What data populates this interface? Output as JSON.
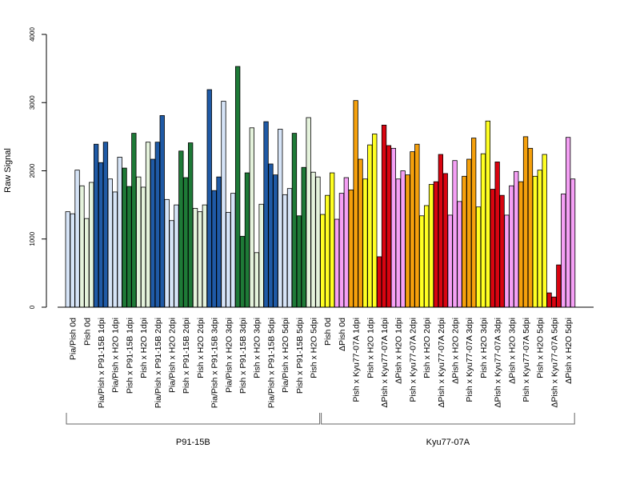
{
  "chart_data": {
    "type": "bar",
    "ylabel": "Raw Signal",
    "ylim": [
      0,
      4000
    ],
    "yticks": [
      0,
      1000,
      2000,
      3000,
      4000
    ],
    "bars_per_group": 3,
    "groups": [
      {
        "label": "Pia/Pish 0d",
        "color": "#D6E4F7",
        "values": [
          1400,
          1370,
          2010
        ]
      },
      {
        "label": "Pish 0d",
        "color": "#E5F3DC",
        "values": [
          1780,
          1300,
          1830
        ]
      },
      {
        "label": "Pia/Pish x P91-15B 1dpi",
        "color": "#1F5AA6",
        "values": [
          2390,
          2120,
          2420
        ]
      },
      {
        "label": "Pia/Pish x H2O 1dpi",
        "color": "#D6E4F7",
        "values": [
          1880,
          1690,
          2200
        ]
      },
      {
        "label": "Pish x P91-15B 1dpi",
        "color": "#1E7A37",
        "values": [
          2040,
          1770,
          2550
        ]
      },
      {
        "label": "Pish x H2O 1dpi",
        "color": "#E5F3DC",
        "values": [
          1910,
          1760,
          2420
        ]
      },
      {
        "label": "Pia/Pish x P91-15B 2dpi",
        "color": "#1F5AA6",
        "values": [
          2170,
          2420,
          2810
        ]
      },
      {
        "label": "Pia/Pish x H2O 2dpi",
        "color": "#D6E4F7",
        "values": [
          1580,
          1270,
          1500
        ]
      },
      {
        "label": "Pish x P91-15B 2dpi",
        "color": "#1E7A37",
        "values": [
          2290,
          1900,
          2410
        ]
      },
      {
        "label": "Pish x H2O 2dpi",
        "color": "#E5F3DC",
        "values": [
          1450,
          1400,
          1500
        ]
      },
      {
        "label": "Pia/Pish x P91-15B 3dpi",
        "color": "#1F5AA6",
        "values": [
          3190,
          1710,
          1910
        ]
      },
      {
        "label": "Pia/Pish x H2O 3dpi",
        "color": "#D6E4F7",
        "values": [
          3020,
          1390,
          1670
        ]
      },
      {
        "label": "Pish x P91-15B 3dpi",
        "color": "#1E7A37",
        "values": [
          3530,
          1040,
          1970
        ]
      },
      {
        "label": "Pish x H2O 3dpi",
        "color": "#E5F3DC",
        "values": [
          2630,
          800,
          1510
        ]
      },
      {
        "label": "Pia/Pish x P91-15B 5dpi",
        "color": "#1F5AA6",
        "values": [
          2720,
          2100,
          1940
        ]
      },
      {
        "label": "Pia/Pish x H2O 5dpi",
        "color": "#D6E4F7",
        "values": [
          2610,
          1650,
          1740
        ]
      },
      {
        "label": "Pish x P91-15B 5dpi",
        "color": "#1E7A37",
        "values": [
          2550,
          1340,
          2050
        ]
      },
      {
        "label": "Pish x H2O 5dpi",
        "color": "#E5F3DC",
        "values": [
          2780,
          1980,
          1910
        ]
      },
      {
        "label": "Pish 0d",
        "color": "#FFFF22",
        "values": [
          1360,
          1640,
          1970
        ]
      },
      {
        "label": "ΔPish 0d",
        "color": "#F5A0F5",
        "values": [
          1290,
          1670,
          1900
        ]
      },
      {
        "label": "Pish x Kyu77-07A 1dpi",
        "color": "#F5A00C",
        "values": [
          1720,
          3030,
          2170
        ]
      },
      {
        "label": "Pish x H2O 1dpi",
        "color": "#FFFF22",
        "values": [
          1880,
          2380,
          2540
        ]
      },
      {
        "label": "ΔPish x Kyu77-07A 1dpi",
        "color": "#D90410",
        "values": [
          740,
          2670,
          2370
        ]
      },
      {
        "label": "ΔPish x H2O 1dpi",
        "color": "#F5A0F5",
        "values": [
          2330,
          1880,
          2000
        ]
      },
      {
        "label": "Pish x Kyu77-07A 2dpi",
        "color": "#F5A00C",
        "values": [
          1940,
          2280,
          2390
        ]
      },
      {
        "label": "Pish x H2O 2dpi",
        "color": "#FFFF22",
        "values": [
          1340,
          1490,
          1800
        ]
      },
      {
        "label": "ΔPish x Kyu77-07A 2dpi",
        "color": "#D90410",
        "values": [
          1840,
          2240,
          1960
        ]
      },
      {
        "label": "ΔPish x H2O 2dpi",
        "color": "#F5A0F5",
        "values": [
          1350,
          2150,
          1550
        ]
      },
      {
        "label": "Pish x Kyu77-07A 3dpi",
        "color": "#F5A00C",
        "values": [
          1920,
          2170,
          2480
        ]
      },
      {
        "label": "Pish x H2O 3dpi",
        "color": "#FFFF22",
        "values": [
          1470,
          2250,
          2730
        ]
      },
      {
        "label": "ΔPish x Kyu77-07A 3dpi",
        "color": "#D90410",
        "values": [
          1730,
          2130,
          1640
        ]
      },
      {
        "label": "ΔPish x H2O 3dpi",
        "color": "#F5A0F5",
        "values": [
          1350,
          1780,
          1990
        ]
      },
      {
        "label": "Pish x Kyu77-07A 5dpi",
        "color": "#F5A00C",
        "values": [
          1840,
          2500,
          2330
        ]
      },
      {
        "label": "Pish x H2O 5dpi",
        "color": "#FFFF22",
        "values": [
          1920,
          2010,
          2240
        ]
      },
      {
        "label": "ΔPish x Kyu77-07A 5dpi",
        "color": "#D90410",
        "values": [
          210,
          150,
          620
        ]
      },
      {
        "label": "ΔPish x H2O 5dpi",
        "color": "#F5A0F5",
        "values": [
          1660,
          2490,
          1880
        ]
      }
    ],
    "brackets": [
      {
        "label": "P91-15B",
        "first_group": 0,
        "last_group": 17
      },
      {
        "label": "Kyu77-07A",
        "first_group": 18,
        "last_group": 35
      }
    ]
  }
}
